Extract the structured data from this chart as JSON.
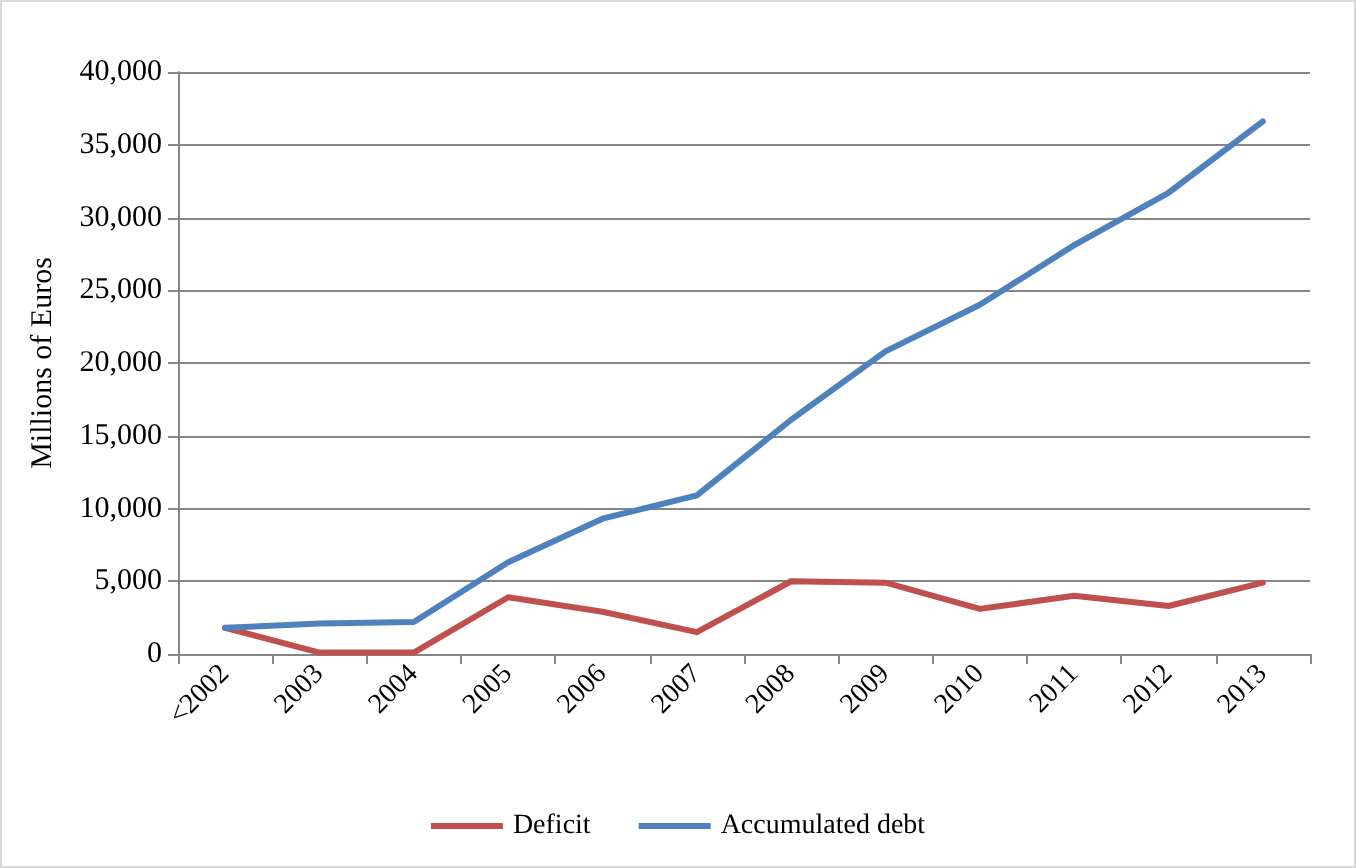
{
  "chart_data": {
    "type": "line",
    "ylabel": "Millions of Euros",
    "categories": [
      "<2002",
      "2003",
      "2004",
      "2005",
      "2006",
      "2007",
      "2008",
      "2009",
      "2010",
      "2011",
      "2012",
      "2013"
    ],
    "series": [
      {
        "name": "Deficit",
        "color": "#c0504d",
        "values": [
          1800,
          100,
          100,
          3900,
          2900,
          1500,
          5000,
          4900,
          3100,
          4000,
          3300,
          4900
        ]
      },
      {
        "name": "Accumulated debt",
        "color": "#4f81bd",
        "values": [
          1800,
          2100,
          2200,
          6300,
          9300,
          10900,
          16100,
          20800,
          24000,
          28100,
          31700,
          36600
        ]
      }
    ],
    "ylim": [
      0,
      40000
    ],
    "yticks": [
      {
        "value": 0,
        "label": "0"
      },
      {
        "value": 5000,
        "label": "5,000"
      },
      {
        "value": 10000,
        "label": "10,000"
      },
      {
        "value": 15000,
        "label": "15,000"
      },
      {
        "value": 20000,
        "label": "20,000"
      },
      {
        "value": 25000,
        "label": "25,000"
      },
      {
        "value": 30000,
        "label": "30,000"
      },
      {
        "value": 35000,
        "label": "35,000"
      },
      {
        "value": 40000,
        "label": "40,000"
      }
    ],
    "grid": "y",
    "legend": "bottom",
    "marker": "none",
    "line_style": "solid"
  }
}
